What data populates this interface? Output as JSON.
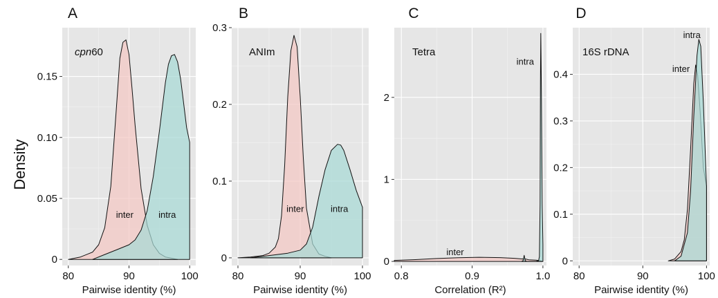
{
  "figure": {
    "y_axis_label": "Density"
  },
  "chart_data": [
    {
      "type": "area",
      "panel_letter": "A",
      "panel_name_italic": "cpn",
      "panel_name_rest": "60",
      "xlabel": "Pairwise identity (%)",
      "ylabel": "Density",
      "xlim": [
        79,
        101
      ],
      "ylim": [
        -0.005,
        0.19
      ],
      "xticks": [
        80,
        90,
        100
      ],
      "xtick_labels": [
        "80",
        "90",
        "100"
      ],
      "yticks": [
        0,
        0.05,
        0.1,
        0.15
      ],
      "ytick_labels": [
        "0",
        "0.05",
        "0.10",
        "0.15"
      ],
      "series": [
        {
          "name": "inter",
          "color": "#f4c7c3",
          "x": [
            80,
            82,
            84,
            85,
            86,
            87,
            88,
            88.5,
            89,
            89.5,
            90,
            90.5,
            91,
            92,
            93,
            94,
            95,
            96,
            97,
            98
          ],
          "y": [
            0,
            0.002,
            0.006,
            0.012,
            0.026,
            0.06,
            0.13,
            0.165,
            0.178,
            0.18,
            0.168,
            0.14,
            0.11,
            0.058,
            0.028,
            0.012,
            0.005,
            0.002,
            0.001,
            0
          ]
        },
        {
          "name": "intra",
          "color": "#a8dad6",
          "x": [
            84,
            86,
            88,
            90,
            91,
            92,
            93,
            94,
            95,
            96,
            96.5,
            97,
            97.5,
            98,
            98.5,
            99,
            99.5,
            100
          ],
          "y": [
            0,
            0.004,
            0.008,
            0.012,
            0.016,
            0.024,
            0.04,
            0.068,
            0.105,
            0.145,
            0.16,
            0.167,
            0.168,
            0.162,
            0.148,
            0.128,
            0.108,
            0.096
          ]
        }
      ],
      "labels": [
        {
          "text": "inter",
          "x": 89.3,
          "y": 0.034
        },
        {
          "text": "intra",
          "x": 96.3,
          "y": 0.034
        }
      ]
    },
    {
      "type": "area",
      "panel_letter": "B",
      "panel_name_italic": "",
      "panel_name_rest": "ANIm",
      "xlabel": "Pairwise identity (%)",
      "ylabel": "",
      "xlim": [
        79,
        101
      ],
      "ylim": [
        -0.01,
        0.3
      ],
      "xticks": [
        80,
        90,
        100
      ],
      "xtick_labels": [
        "80",
        "90",
        "100"
      ],
      "yticks": [
        0,
        0.1,
        0.2,
        0.3
      ],
      "ytick_labels": [
        "0",
        "0.1",
        "0.2",
        "0.3"
      ],
      "series": [
        {
          "name": "inter",
          "color": "#f4c7c3",
          "x": [
            80,
            82,
            84,
            85,
            86,
            86.5,
            87,
            87.5,
            88,
            88.5,
            89,
            89.5,
            90,
            90.5,
            91,
            92,
            93,
            94,
            95
          ],
          "y": [
            0,
            0.001,
            0.003,
            0.006,
            0.014,
            0.025,
            0.055,
            0.12,
            0.21,
            0.27,
            0.29,
            0.275,
            0.21,
            0.13,
            0.065,
            0.018,
            0.005,
            0.002,
            0
          ]
        },
        {
          "name": "intra",
          "color": "#a8dad6",
          "x": [
            82,
            84,
            86,
            88,
            90,
            91,
            92,
            93,
            94,
            95,
            96,
            96.5,
            97,
            98,
            99,
            100
          ],
          "y": [
            0,
            0.002,
            0.004,
            0.006,
            0.01,
            0.018,
            0.04,
            0.08,
            0.115,
            0.14,
            0.148,
            0.147,
            0.14,
            0.115,
            0.088,
            0.066
          ]
        }
      ],
      "labels": [
        {
          "text": "inter",
          "x": 89.2,
          "y": 0.06
        },
        {
          "text": "intra",
          "x": 96.3,
          "y": 0.06
        }
      ]
    },
    {
      "type": "area",
      "panel_letter": "C",
      "panel_name_italic": "",
      "panel_name_rest": "Tetra",
      "xlabel": "Correlation (R²)",
      "ylabel": "",
      "xlim": [
        0.79,
        1.005
      ],
      "ylim": [
        -0.05,
        2.85
      ],
      "xticks": [
        0.8,
        0.9,
        1.0
      ],
      "xtick_labels": [
        "0.8",
        "0.9",
        "1.0"
      ],
      "yticks": [
        0,
        1,
        2
      ],
      "ytick_labels": [
        "0",
        "1",
        "2"
      ],
      "series": [
        {
          "name": "inter",
          "color": "#f4c7c3",
          "x": [
            0.79,
            0.82,
            0.85,
            0.88,
            0.91,
            0.94,
            0.96,
            0.97,
            0.975,
            0.98,
            0.99,
            0.996,
            1.0
          ],
          "y": [
            0.012,
            0.022,
            0.035,
            0.045,
            0.05,
            0.046,
            0.038,
            0.03,
            0.03,
            0.02,
            0.015,
            0.01,
            0
          ]
        },
        {
          "name": "intra",
          "color": "#a8dad6",
          "x": [
            0.97,
            0.972,
            0.9735,
            0.975,
            0.977,
            0.99,
            0.994,
            0.995,
            0.996,
            0.9965,
            0.997,
            0.998,
            0.999,
            1.0
          ],
          "y": [
            0,
            0.01,
            0.075,
            0.01,
            0,
            0,
            0.01,
            0.06,
            0.7,
            2.2,
            2.78,
            2.0,
            0.7,
            0.2
          ]
        }
      ],
      "labels": [
        {
          "text": "inter",
          "x": 0.876,
          "y": 0.075
        },
        {
          "text": "intra",
          "x": 0.975,
          "y": 2.4
        }
      ]
    },
    {
      "type": "area",
      "panel_letter": "D",
      "panel_name_italic": "",
      "panel_name_rest": "16S rDNA",
      "xlabel": "Pairwise identity (%)",
      "ylabel": "",
      "xlim": [
        79,
        100.5
      ],
      "ylim": [
        -0.01,
        0.5
      ],
      "xticks": [
        80,
        90,
        100
      ],
      "xtick_labels": [
        "80",
        "90",
        "100"
      ],
      "yticks": [
        0,
        0.1,
        0.2,
        0.3,
        0.4
      ],
      "ytick_labels": [
        "0",
        "0.1",
        "0.2",
        "0.3",
        "0.4"
      ],
      "series": [
        {
          "name": "inter",
          "color": "#f4c7c3",
          "x": [
            94,
            95,
            96,
            96.5,
            97,
            97.5,
            98,
            98.3,
            98.6,
            99,
            99.5,
            100
          ],
          "y": [
            0,
            0.004,
            0.02,
            0.045,
            0.11,
            0.24,
            0.38,
            0.42,
            0.4,
            0.32,
            0.2,
            0.16
          ]
        },
        {
          "name": "intra",
          "color": "#a8dad6",
          "x": [
            95,
            96,
            97,
            97.5,
            98,
            98.5,
            98.8,
            99.1,
            99.5,
            100
          ],
          "y": [
            0,
            0.01,
            0.06,
            0.15,
            0.31,
            0.44,
            0.475,
            0.46,
            0.34,
            0.16
          ]
        }
      ],
      "labels": [
        {
          "text": "intra",
          "x": 97.7,
          "y": 0.478
        },
        {
          "text": "inter",
          "x": 96.0,
          "y": 0.405
        }
      ]
    }
  ]
}
